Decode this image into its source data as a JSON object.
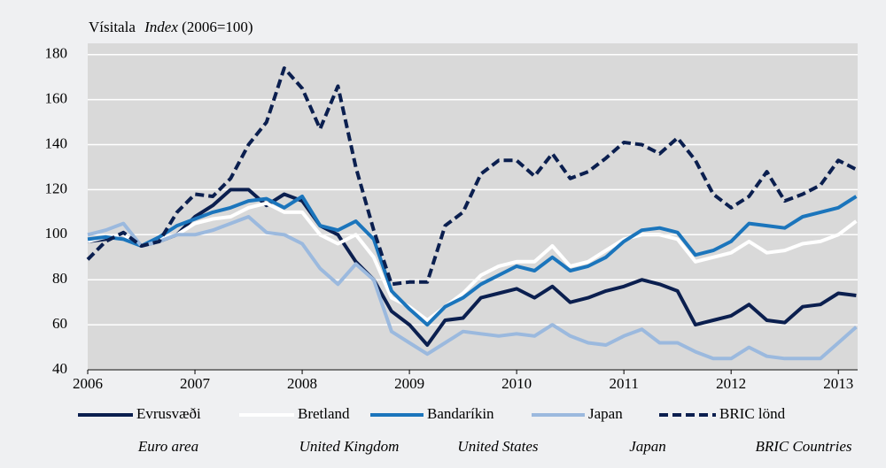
{
  "chart_data": {
    "type": "line",
    "title_label": "Vísitala",
    "title_label_en": "Index",
    "title_unit": "(2006=100)",
    "x": [
      2006.0,
      2006.167,
      2006.333,
      2006.5,
      2006.667,
      2006.833,
      2007.0,
      2007.167,
      2007.333,
      2007.5,
      2007.667,
      2007.833,
      2008.0,
      2008.167,
      2008.333,
      2008.5,
      2008.667,
      2008.833,
      2009.0,
      2009.167,
      2009.333,
      2009.5,
      2009.667,
      2009.833,
      2010.0,
      2010.167,
      2010.333,
      2010.5,
      2010.667,
      2010.833,
      2011.0,
      2011.167,
      2011.333,
      2011.5,
      2011.667,
      2011.833,
      2012.0,
      2012.167,
      2012.333,
      2012.5,
      2012.667,
      2012.833,
      2013.0,
      2013.167
    ],
    "xlim": [
      2006,
      2013.18
    ],
    "xticks": [
      2006,
      2007,
      2008,
      2009,
      2010,
      2011,
      2012,
      2013
    ],
    "ylim": [
      40,
      185
    ],
    "yticks": [
      40,
      60,
      80,
      100,
      120,
      140,
      160,
      180
    ],
    "grid": true,
    "series": [
      {
        "name": "Evrusvæði",
        "name_en": "Euro area",
        "color": "#0b1f4f",
        "dash": false,
        "values": [
          97,
          98,
          100,
          95,
          97,
          100,
          108,
          113,
          120,
          120,
          113,
          118,
          115,
          104,
          100,
          88,
          80,
          66,
          60,
          51,
          62,
          63,
          72,
          74,
          76,
          72,
          77,
          70,
          72,
          75,
          77,
          80,
          78,
          75,
          60,
          62,
          64,
          69,
          62,
          61,
          68,
          69,
          74,
          73
        ]
      },
      {
        "name": "Bretland",
        "name_en": "United Kingdom",
        "color": "#ffffff",
        "dash": false,
        "values": [
          97,
          99,
          100,
          95,
          98,
          100,
          105,
          107,
          108,
          112,
          114,
          110,
          110,
          100,
          96,
          100,
          90,
          72,
          68,
          62,
          68,
          74,
          82,
          86,
          88,
          88,
          95,
          86,
          88,
          93,
          98,
          100,
          100,
          98,
          88,
          90,
          92,
          97,
          92,
          93,
          96,
          97,
          100,
          106
        ]
      },
      {
        "name": "Bandaríkin",
        "name_en": "United States",
        "color": "#1b75bc",
        "dash": false,
        "values": [
          98,
          99,
          98,
          95,
          99,
          104,
          107,
          110,
          112,
          115,
          116,
          112,
          117,
          104,
          102,
          106,
          98,
          75,
          67,
          60,
          68,
          72,
          78,
          82,
          86,
          84,
          90,
          84,
          86,
          90,
          97,
          102,
          103,
          101,
          91,
          93,
          97,
          105,
          104,
          103,
          108,
          110,
          112,
          117
        ]
      },
      {
        "name": "Japan",
        "name_en": "Japan",
        "color": "#9bb9de",
        "dash": false,
        "values": [
          100,
          102,
          105,
          95,
          97,
          100,
          100,
          102,
          105,
          108,
          101,
          100,
          96,
          85,
          78,
          87,
          80,
          57,
          52,
          47,
          52,
          57,
          56,
          55,
          56,
          55,
          60,
          55,
          52,
          51,
          55,
          58,
          52,
          52,
          48,
          45,
          45,
          50,
          46,
          45,
          45,
          45,
          52,
          59
        ]
      },
      {
        "name": "BRIC lönd",
        "name_en": "BRIC Countries",
        "color": "#0b1f4f",
        "dash": true,
        "values": [
          89,
          97,
          101,
          95,
          97,
          110,
          118,
          117,
          125,
          140,
          150,
          174,
          165,
          147,
          166,
          130,
          102,
          78,
          79,
          79,
          104,
          110,
          127,
          133,
          133,
          126,
          136,
          125,
          128,
          134,
          141,
          140,
          136,
          143,
          133,
          118,
          112,
          117,
          128,
          115,
          118,
          122,
          133,
          129
        ]
      }
    ]
  }
}
